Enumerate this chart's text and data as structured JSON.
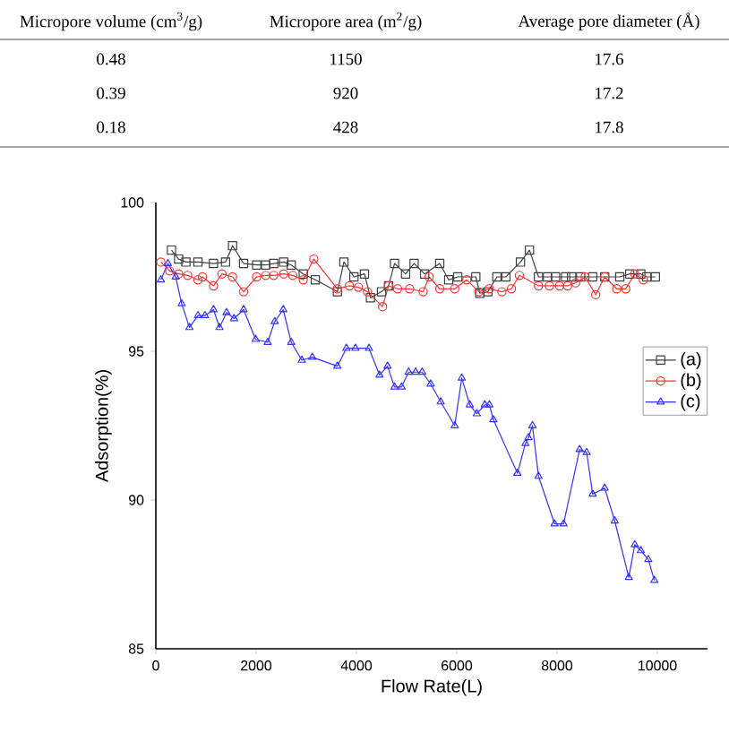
{
  "chart_data": {
    "type": "line",
    "xlabel": "Flow Rate(L)",
    "ylabel": "Adsorption(%)",
    "xlim": [
      0,
      11000
    ],
    "ylim": [
      85,
      100
    ],
    "xticks": [
      0,
      2000,
      4000,
      6000,
      8000,
      10000
    ],
    "yticks": [
      85,
      90,
      95,
      100
    ],
    "grid": false,
    "legend": "right",
    "line_style": "solid",
    "annotations": [
      "Micropore volume (cm$^{3}$/g)",
      "Micropore area (m$^{2}$/g)",
      "Average pore diameter (Å)",
      "0.48",
      "1150",
      "17.6",
      "0.39",
      "920",
      "17.2",
      "0.18",
      "428",
      "17.8"
    ],
    "series": [
      {
        "name": "(a)",
        "color": "#404040",
        "marker": "square",
        "x": [
          312,
          455,
          600,
          840,
          1150,
          1390,
          1530,
          1750,
          2010,
          2190,
          2350,
          2550,
          2700,
          2940,
          3180,
          3620,
          3750,
          3950,
          4160,
          4280,
          4500,
          4640,
          4760,
          4980,
          5150,
          5360,
          5660,
          5840,
          6020,
          6380,
          6460,
          6620,
          6800,
          6980,
          7270,
          7450,
          7630,
          7810,
          7970,
          8170,
          8290,
          8470,
          8710,
          8950,
          9250,
          9450,
          9670,
          9790,
          9960
        ],
        "values": [
          98.4,
          98.1,
          98.0,
          98.0,
          97.95,
          98.0,
          98.55,
          97.95,
          97.9,
          97.9,
          97.95,
          98.0,
          97.9,
          97.6,
          97.4,
          97.0,
          98.0,
          97.5,
          97.6,
          96.8,
          97.0,
          97.2,
          97.95,
          97.6,
          97.95,
          97.6,
          97.95,
          97.4,
          97.5,
          97.5,
          96.95,
          97.0,
          97.5,
          97.5,
          98.0,
          98.4,
          97.5,
          97.5,
          97.5,
          97.5,
          97.5,
          97.5,
          97.5,
          97.5,
          97.5,
          97.6,
          97.6,
          97.5,
          97.5
        ]
      },
      {
        "name": "(b)",
        "color": "#ff3333",
        "marker": "circle",
        "x": [
          100,
          275,
          455,
          635,
          840,
          930,
          1150,
          1320,
          1530,
          1750,
          2010,
          2190,
          2350,
          2550,
          2730,
          2940,
          3150,
          3620,
          3860,
          4040,
          4220,
          4520,
          4640,
          4820,
          5060,
          5330,
          5450,
          5660,
          5960,
          6200,
          6440,
          6650,
          6900,
          7090,
          7250,
          7630,
          7850,
          8050,
          8210,
          8370,
          8560,
          8770,
          8950,
          9190,
          9370,
          9550,
          9720
        ],
        "values": [
          98.0,
          97.7,
          97.6,
          97.55,
          97.4,
          97.5,
          97.2,
          97.6,
          97.5,
          97.0,
          97.5,
          97.55,
          97.55,
          97.6,
          97.55,
          97.4,
          98.1,
          97.1,
          97.2,
          97.15,
          97.0,
          96.5,
          97.2,
          97.1,
          97.1,
          97.0,
          97.5,
          97.1,
          97.1,
          97.4,
          97.0,
          97.1,
          97.0,
          97.1,
          97.55,
          97.2,
          97.2,
          97.2,
          97.2,
          97.3,
          97.5,
          96.9,
          97.5,
          97.1,
          97.1,
          97.6,
          97.4
        ]
      },
      {
        "name": "(c)",
        "color": "#3333ff",
        "marker": "triangle",
        "x": [
          100,
          240,
          395,
          515,
          670,
          840,
          980,
          1150,
          1270,
          1410,
          1560,
          1750,
          1990,
          2230,
          2370,
          2540,
          2700,
          2910,
          3120,
          3620,
          3800,
          3980,
          4250,
          4460,
          4620,
          4760,
          4900,
          5040,
          5180,
          5310,
          5480,
          5680,
          5960,
          6100,
          6260,
          6400,
          6560,
          6650,
          6730,
          7210,
          7370,
          7430,
          7510,
          7630,
          7950,
          8130,
          8450,
          8590,
          8710,
          8950,
          9150,
          9430,
          9550,
          9670,
          9820,
          9940
        ],
        "values": [
          97.4,
          97.95,
          97.5,
          96.6,
          95.8,
          96.2,
          96.2,
          96.4,
          95.8,
          96.3,
          96.1,
          96.4,
          95.4,
          95.3,
          96.0,
          96.4,
          95.3,
          94.7,
          94.8,
          94.5,
          95.1,
          95.1,
          95.1,
          94.2,
          94.5,
          93.8,
          93.8,
          94.3,
          94.3,
          94.3,
          93.9,
          93.3,
          92.5,
          94.1,
          93.2,
          92.9,
          93.2,
          93.2,
          92.7,
          90.9,
          91.9,
          92.1,
          92.5,
          90.8,
          89.2,
          89.2,
          91.7,
          91.6,
          90.2,
          90.4,
          89.3,
          87.4,
          88.5,
          88.3,
          88.0,
          87.3
        ]
      }
    ]
  }
}
